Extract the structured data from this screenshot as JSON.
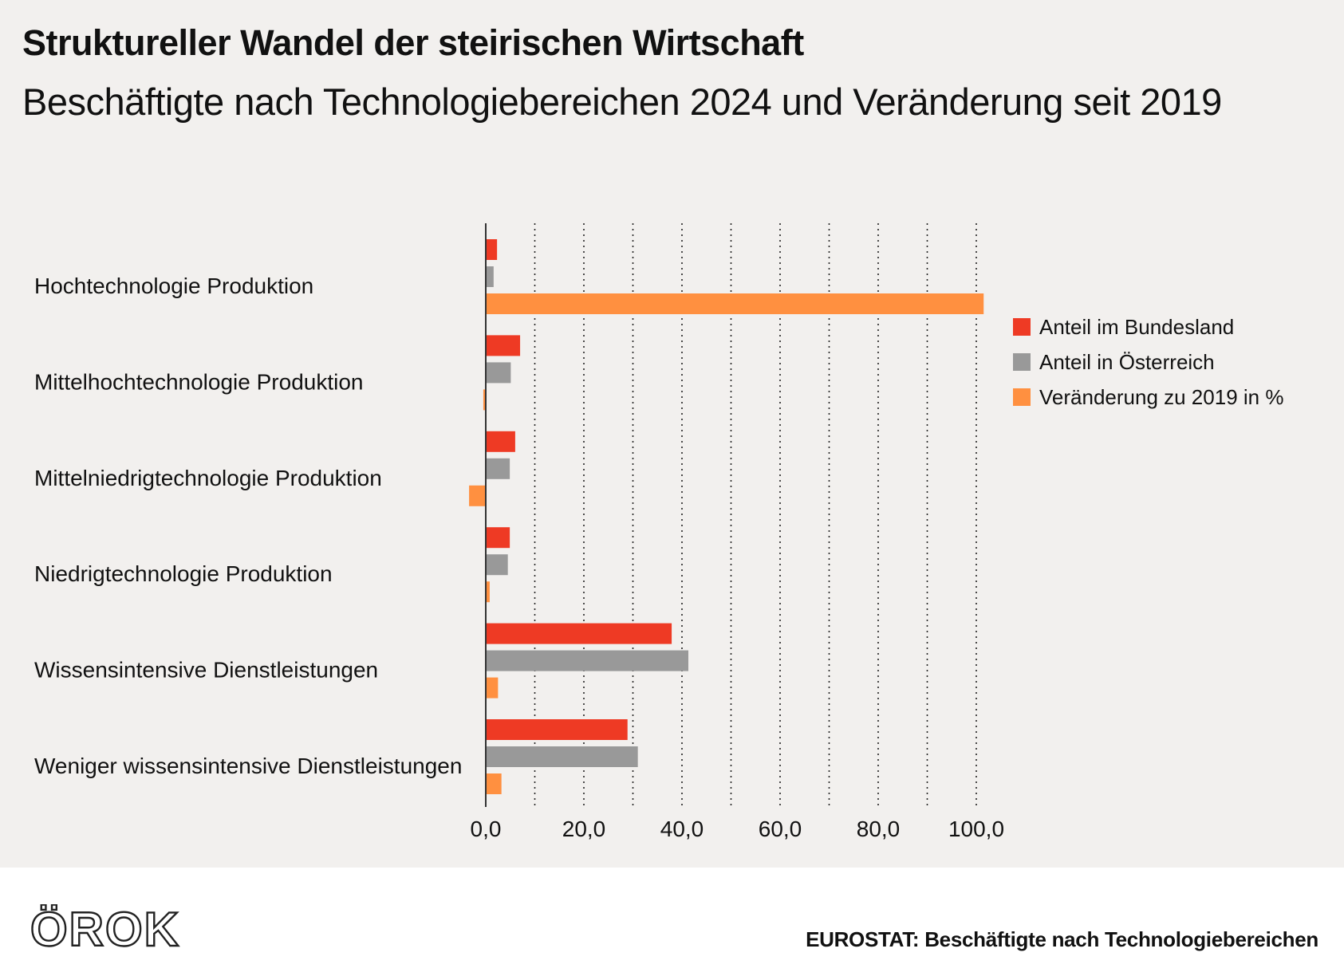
{
  "title": "Struktureller Wandel der steirischen Wirtschaft",
  "subtitle": "Beschäftigte nach Technologiebereichen 2024 und Veränderung seit 2019",
  "source": "EUROSTAT: Beschäftigte nach Technologiebereichen",
  "logo": {
    "text": "ÖROK",
    "color": "#222222"
  },
  "chart_data": {
    "type": "bar",
    "orientation": "horizontal",
    "title": "Beschäftigte nach Technologiebereichen 2024 und Veränderung seit 2019",
    "xlabel": "",
    "ylabel": "",
    "xlim": [
      0,
      100
    ],
    "ticks": [
      0,
      20,
      40,
      60,
      80,
      100
    ],
    "tick_labels": [
      "0,0",
      "20,0",
      "40,0",
      "60,0",
      "80,0",
      "100,0"
    ],
    "grid_values": [
      10,
      20,
      30,
      40,
      50,
      60,
      70,
      80,
      90,
      100
    ],
    "grid": true,
    "legend_position": "right",
    "categories": [
      "Hochtechnologie Produktion",
      "Mittelhochtechnologie Produktion",
      "Mittelniedrigtechnologie Produktion",
      "Niedrigtechnologie Produktion",
      "Wissensintensive Dienstleistungen",
      "Weniger wissensintensive Dienstleistungen"
    ],
    "series": [
      {
        "name": "Anteil im Bundesland",
        "color": "#ee3a24",
        "values": [
          2.3,
          7.0,
          6.0,
          4.9,
          37.9,
          28.9
        ]
      },
      {
        "name": "Anteil in Österreich",
        "color": "#999999",
        "values": [
          1.6,
          5.1,
          4.9,
          4.5,
          41.3,
          31.0
        ]
      },
      {
        "name": "Veränderung zu 2019 in %",
        "color": "#ff9040",
        "values": [
          101.5,
          -0.5,
          -3.4,
          0.8,
          2.5,
          3.2
        ]
      }
    ]
  }
}
